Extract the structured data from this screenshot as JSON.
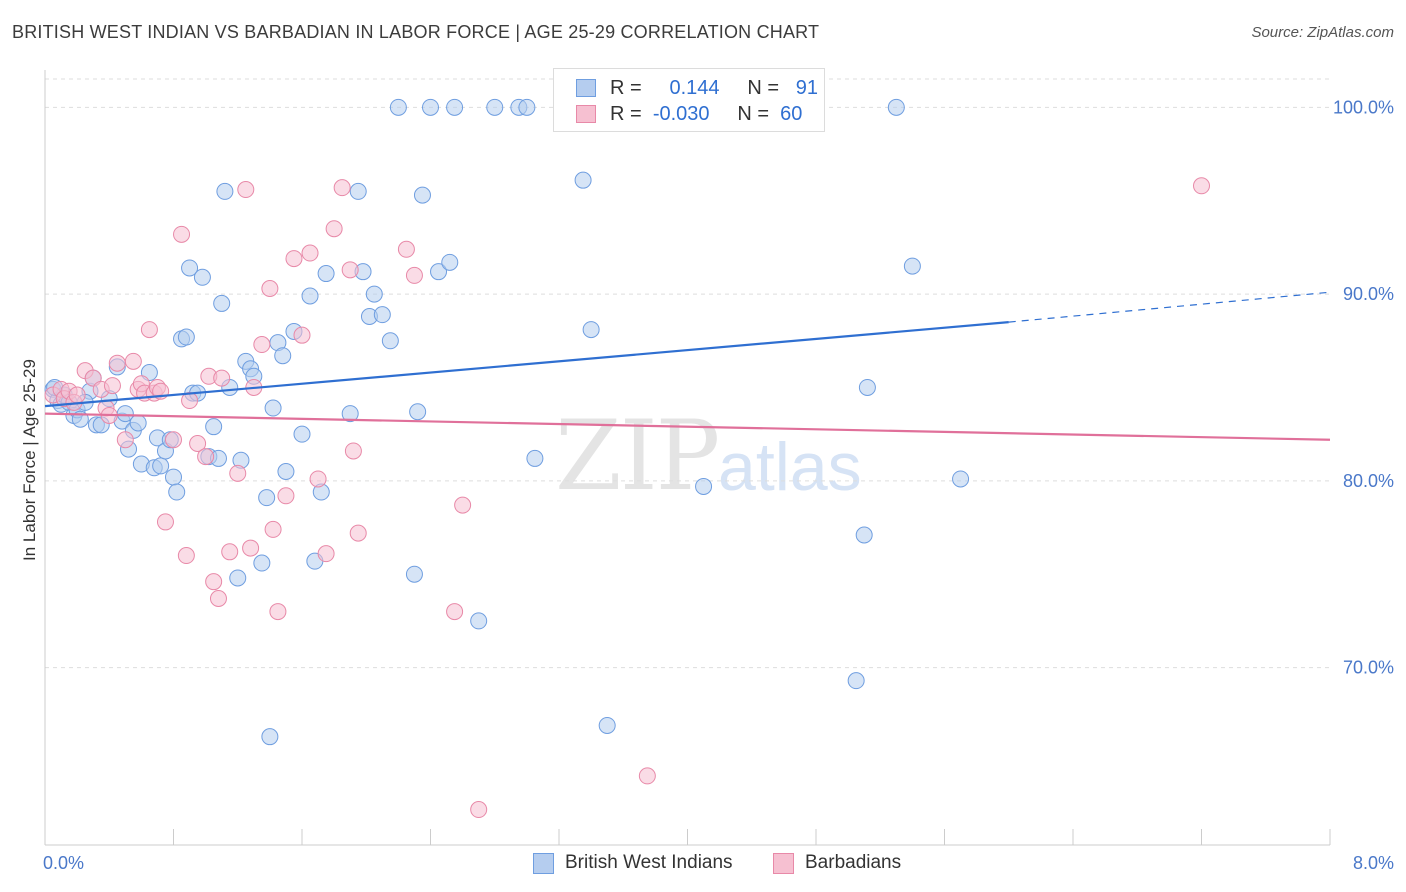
{
  "title": "BRITISH WEST INDIAN VS BARBADIAN IN LABOR FORCE | AGE 25-29 CORRELATION CHART",
  "source": "Source: ZipAtlas.com",
  "watermark": {
    "zip": "ZIP",
    "atlas": "atlas"
  },
  "legend": {
    "r_label": "R =",
    "n_label": "N =",
    "series": [
      {
        "name": "British West Indians",
        "r": "0.144",
        "n": "91",
        "color": "#6f9ee0",
        "fill": "#b5cdef"
      },
      {
        "name": "Barbadians",
        "r": "-0.030",
        "n": "60",
        "color": "#e889a8",
        "fill": "#f6c0d1"
      }
    ]
  },
  "chart_data": {
    "type": "scatter",
    "title": "BRITISH WEST INDIAN VS BARBADIAN IN LABOR FORCE | AGE 25-29 CORRELATION CHART",
    "xlabel": "",
    "ylabel": "In Labor Force | Age 25-29",
    "xlim": [
      0,
      8.0
    ],
    "ylim": [
      60.5,
      102.0
    ],
    "x_tick_labels": [
      "0.0%",
      "8.0%"
    ],
    "y_ticks": [
      70,
      80,
      90,
      100
    ],
    "y_tick_labels": [
      "70.0%",
      "80.0%",
      "90.0%",
      "100.0%"
    ],
    "grid": true,
    "series": [
      {
        "name": "British West Indians",
        "color": "#6f9ee0",
        "trend": {
          "x": [
            0.0,
            6.0
          ],
          "y": [
            84.0,
            88.5
          ],
          "dashed_to": [
            8.0,
            90.1
          ]
        },
        "points": [
          [
            0.05,
            84.9
          ],
          [
            0.08,
            84.3
          ],
          [
            0.1,
            84.1
          ],
          [
            0.12,
            84.6
          ],
          [
            0.15,
            84.2
          ],
          [
            0.18,
            83.5
          ],
          [
            0.2,
            83.8
          ],
          [
            0.22,
            83.3
          ],
          [
            0.28,
            84.8
          ],
          [
            0.3,
            85.5
          ],
          [
            0.32,
            83.0
          ],
          [
            0.35,
            83.0
          ],
          [
            0.4,
            84.4
          ],
          [
            0.45,
            86.1
          ],
          [
            0.48,
            83.2
          ],
          [
            0.5,
            83.6
          ],
          [
            0.52,
            81.7
          ],
          [
            0.55,
            82.7
          ],
          [
            0.58,
            83.1
          ],
          [
            0.6,
            80.9
          ],
          [
            0.65,
            85.8
          ],
          [
            0.68,
            80.7
          ],
          [
            0.7,
            82.3
          ],
          [
            0.72,
            80.8
          ],
          [
            0.75,
            81.6
          ],
          [
            0.78,
            82.2
          ],
          [
            0.8,
            80.2
          ],
          [
            0.82,
            79.4
          ],
          [
            0.85,
            87.6
          ],
          [
            0.88,
            87.7
          ],
          [
            0.9,
            91.4
          ],
          [
            0.92,
            84.7
          ],
          [
            0.95,
            84.7
          ],
          [
            0.98,
            90.9
          ],
          [
            1.02,
            81.3
          ],
          [
            1.05,
            82.9
          ],
          [
            1.08,
            81.2
          ],
          [
            1.1,
            89.5
          ],
          [
            1.12,
            95.5
          ],
          [
            1.15,
            85.0
          ],
          [
            1.2,
            74.8
          ],
          [
            1.22,
            81.1
          ],
          [
            1.25,
            86.4
          ],
          [
            1.28,
            86.0
          ],
          [
            1.3,
            85.6
          ],
          [
            1.35,
            75.6
          ],
          [
            1.38,
            79.1
          ],
          [
            1.4,
            66.3
          ],
          [
            1.42,
            83.9
          ],
          [
            1.45,
            87.4
          ],
          [
            1.48,
            86.7
          ],
          [
            1.5,
            80.5
          ],
          [
            1.55,
            88.0
          ],
          [
            1.6,
            82.5
          ],
          [
            1.65,
            89.9
          ],
          [
            1.68,
            75.7
          ],
          [
            1.72,
            79.4
          ],
          [
            1.75,
            91.1
          ],
          [
            1.9,
            83.6
          ],
          [
            1.95,
            95.5
          ],
          [
            1.98,
            91.2
          ],
          [
            2.02,
            88.8
          ],
          [
            2.05,
            90.0
          ],
          [
            2.1,
            88.9
          ],
          [
            2.15,
            87.5
          ],
          [
            2.2,
            100.0
          ],
          [
            2.3,
            75.0
          ],
          [
            2.32,
            83.7
          ],
          [
            2.35,
            95.3
          ],
          [
            2.4,
            100.0
          ],
          [
            2.45,
            91.2
          ],
          [
            2.52,
            91.7
          ],
          [
            2.55,
            100.0
          ],
          [
            2.8,
            100.0
          ],
          [
            2.95,
            100.0
          ],
          [
            3.0,
            100.0
          ],
          [
            2.7,
            72.5
          ],
          [
            3.05,
            81.2
          ],
          [
            3.35,
            96.1
          ],
          [
            3.4,
            88.1
          ],
          [
            3.5,
            66.9
          ],
          [
            3.85,
            100.0
          ],
          [
            4.1,
            79.7
          ],
          [
            5.05,
            69.3
          ],
          [
            5.1,
            77.1
          ],
          [
            5.12,
            85.0
          ],
          [
            5.3,
            100.0
          ],
          [
            5.4,
            91.5
          ],
          [
            5.7,
            80.1
          ],
          [
            0.06,
            85.0
          ],
          [
            0.25,
            84.2
          ]
        ]
      },
      {
        "name": "Barbadians",
        "color": "#e889a8",
        "trend": {
          "x": [
            0.0,
            8.0
          ],
          "y": [
            83.6,
            82.2
          ]
        },
        "points": [
          [
            0.05,
            84.6
          ],
          [
            0.1,
            84.9
          ],
          [
            0.12,
            84.4
          ],
          [
            0.15,
            84.8
          ],
          [
            0.18,
            84.2
          ],
          [
            0.2,
            84.6
          ],
          [
            0.25,
            85.9
          ],
          [
            0.3,
            85.5
          ],
          [
            0.35,
            84.9
          ],
          [
            0.38,
            83.9
          ],
          [
            0.4,
            83.5
          ],
          [
            0.42,
            85.1
          ],
          [
            0.45,
            86.3
          ],
          [
            0.5,
            82.2
          ],
          [
            0.55,
            86.4
          ],
          [
            0.58,
            84.9
          ],
          [
            0.6,
            85.2
          ],
          [
            0.62,
            84.7
          ],
          [
            0.65,
            88.1
          ],
          [
            0.68,
            84.7
          ],
          [
            0.7,
            85.0
          ],
          [
            0.72,
            84.8
          ],
          [
            0.75,
            77.8
          ],
          [
            0.8,
            82.2
          ],
          [
            0.85,
            93.2
          ],
          [
            0.88,
            76.0
          ],
          [
            0.9,
            84.3
          ],
          [
            0.95,
            82.0
          ],
          [
            1.0,
            81.3
          ],
          [
            1.02,
            85.6
          ],
          [
            1.05,
            74.6
          ],
          [
            1.08,
            73.7
          ],
          [
            1.1,
            85.5
          ],
          [
            1.15,
            76.2
          ],
          [
            1.2,
            80.4
          ],
          [
            1.25,
            95.6
          ],
          [
            1.28,
            76.4
          ],
          [
            1.3,
            85.0
          ],
          [
            1.35,
            87.3
          ],
          [
            1.4,
            90.3
          ],
          [
            1.42,
            77.4
          ],
          [
            1.45,
            73.0
          ],
          [
            1.5,
            79.2
          ],
          [
            1.55,
            91.9
          ],
          [
            1.6,
            87.8
          ],
          [
            1.65,
            92.2
          ],
          [
            1.7,
            80.1
          ],
          [
            1.75,
            76.1
          ],
          [
            1.8,
            93.5
          ],
          [
            1.85,
            95.7
          ],
          [
            1.9,
            91.3
          ],
          [
            1.92,
            81.6
          ],
          [
            1.95,
            77.2
          ],
          [
            2.25,
            92.4
          ],
          [
            2.3,
            91.0
          ],
          [
            2.55,
            73.0
          ],
          [
            2.6,
            78.7
          ],
          [
            2.7,
            62.4
          ],
          [
            3.75,
            64.2
          ],
          [
            7.2,
            95.8
          ]
        ]
      }
    ]
  }
}
